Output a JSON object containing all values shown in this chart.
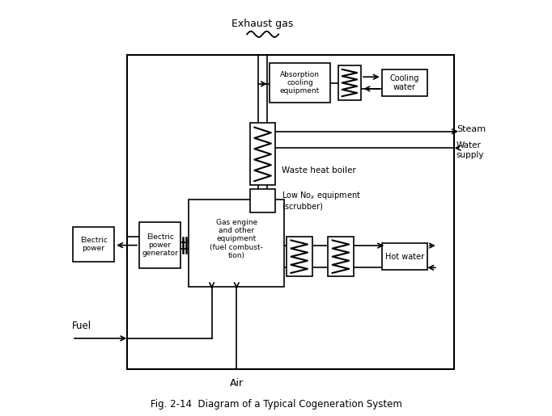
{
  "title": "Fig. 2-14  Diagram of a Typical Cogeneration System",
  "background_color": "#ffffff",
  "line_color": "#000000",
  "figsize": [
    6.82,
    5.15
  ],
  "dpi": 100,
  "xlim": [
    0,
    10
  ],
  "ylim": [
    0,
    10
  ]
}
